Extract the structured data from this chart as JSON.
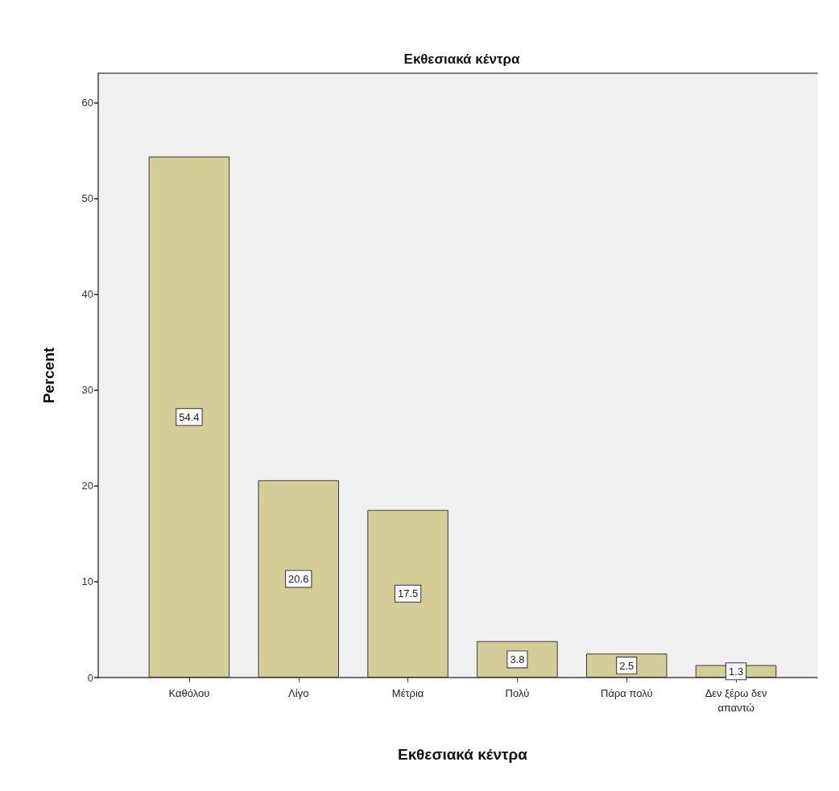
{
  "chart_data": {
    "type": "bar",
    "title": "Εκθεσιακά κέντρα",
    "xlabel": "Εκθεσιακά κέντρα",
    "ylabel": "Percent",
    "categories": [
      "Καθόλου",
      "Λίγο",
      "Μέτρια",
      "Πολύ",
      "Πάρα πολύ",
      "Δεν ξέρω δεν απαντώ"
    ],
    "values": [
      54.4,
      20.6,
      17.5,
      3.8,
      2.5,
      1.3
    ],
    "color": "#d3ce98",
    "ylim": [
      0,
      63.1
    ],
    "yticks": [
      0,
      10,
      20,
      30,
      40,
      50,
      60
    ],
    "data_labels": true
  }
}
